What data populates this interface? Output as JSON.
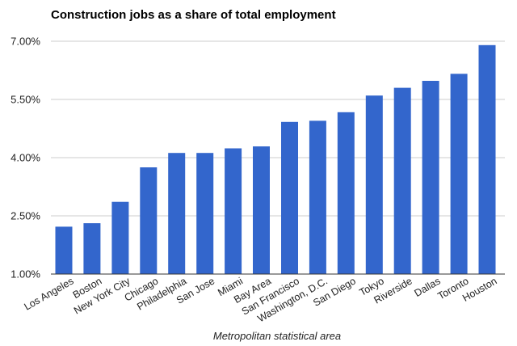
{
  "chart_data": {
    "type": "bar",
    "title": "Construction jobs as a share of total employment",
    "xlabel": "Metropolitan statistical area",
    "ylabel": "",
    "ylim": [
      1.0,
      7.0
    ],
    "yticks": [
      1.0,
      2.5,
      4.0,
      5.5,
      7.0
    ],
    "ytick_labels": [
      "1.00%",
      "2.50%",
      "4.00%",
      "5.50%",
      "7.00%"
    ],
    "grid": true,
    "legend": "none",
    "bar_color": "#3366cc",
    "categories": [
      "Los Angeles",
      "Boston",
      "New York City",
      "Chicago",
      "Philadelphia",
      "San Jose",
      "Miami",
      "Bay Area",
      "San Francisco",
      "Washington, D.C.",
      "San Diego",
      "Tokyo",
      "Riverside",
      "Dallas",
      "Toronto",
      "Houston"
    ],
    "values": [
      2.22,
      2.31,
      2.86,
      3.75,
      4.12,
      4.12,
      4.24,
      4.29,
      4.92,
      4.95,
      5.17,
      5.6,
      5.8,
      5.98,
      6.16,
      6.9
    ]
  }
}
